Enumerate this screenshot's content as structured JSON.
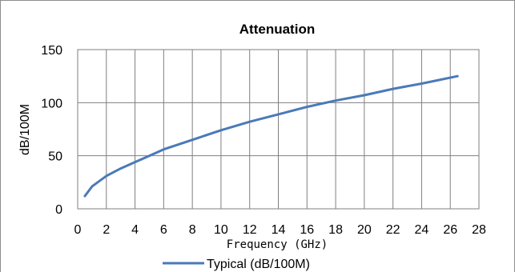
{
  "chart_data": {
    "type": "line",
    "title": "Attenuation",
    "xlabel": "Frequency (GHz)",
    "ylabel": "dB/100M",
    "xlim": [
      0,
      28
    ],
    "ylim": [
      0,
      150
    ],
    "x_ticks": [
      0,
      2,
      4,
      6,
      8,
      10,
      12,
      14,
      16,
      18,
      20,
      22,
      24,
      26,
      28
    ],
    "y_ticks": [
      0,
      50,
      100,
      150
    ],
    "grid": true,
    "legend_position": "bottom",
    "series": [
      {
        "name": "Typical (dB/100M)",
        "color": "#4a7ab8",
        "x": [
          0.5,
          1,
          2,
          3,
          4,
          5,
          6,
          8,
          10,
          12,
          14,
          16,
          18,
          20,
          22,
          24,
          26.5
        ],
        "y": [
          12,
          21,
          31,
          38,
          44,
          50,
          56,
          65,
          74,
          82,
          89,
          96,
          102,
          107,
          113,
          118,
          125
        ]
      }
    ]
  }
}
